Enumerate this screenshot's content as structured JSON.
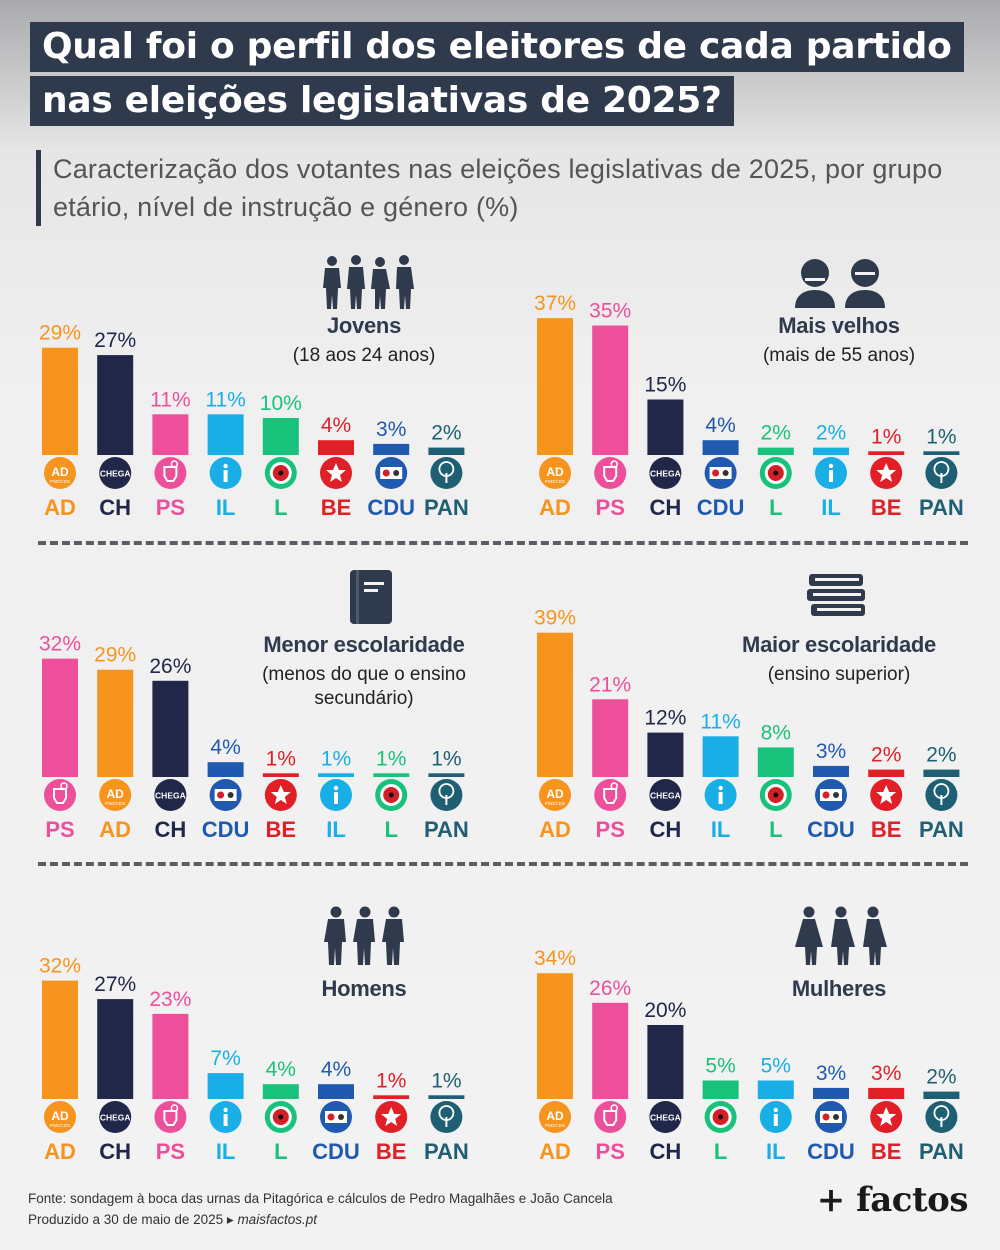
{
  "title_lines": [
    "Qual foi o perfil dos eleitores de cada partido",
    "nas eleições legislativas de 2025?"
  ],
  "subtitle": "Caracterização dos votantes nas eleições legislativas de 2025, por grupo etário, nível de instrução e género (%)",
  "colors": {
    "AD": "#f7941d",
    "CH": "#202749",
    "PS": "#ee4f9b",
    "IL": "#1aaee6",
    "L": "#19c27a",
    "BE": "#e01f27",
    "CDU": "#1f5ab0",
    "PAN": "#1f5f73"
  },
  "chart_data": [
    {
      "type": "bar",
      "title": "Jovens",
      "subtitle": "(18 aos 24 anos)",
      "icon": "young-people-icon",
      "categories": [
        "AD",
        "CH",
        "PS",
        "IL",
        "L",
        "BE",
        "CDU",
        "PAN"
      ],
      "values": [
        29,
        27,
        11,
        11,
        10,
        4,
        3,
        2
      ],
      "labels": [
        "29%",
        "27%",
        "11%",
        "11%",
        "10%",
        "4%",
        "3%",
        "2%"
      ]
    },
    {
      "type": "bar",
      "title": "Mais velhos",
      "subtitle": "(mais de 55 anos)",
      "icon": "elderly-people-icon",
      "categories": [
        "AD",
        "PS",
        "CH",
        "CDU",
        "L",
        "IL",
        "BE",
        "PAN"
      ],
      "values": [
        37,
        35,
        15,
        4,
        2,
        2,
        1,
        1
      ],
      "labels": [
        "37%",
        "35%",
        "15%",
        "4%",
        "2%",
        "2%",
        "1%",
        "1%"
      ]
    },
    {
      "type": "bar",
      "title": "Menor escolaridade",
      "subtitle": "(menos do que o ensino secundário)",
      "icon": "book-icon",
      "categories": [
        "PS",
        "AD",
        "CH",
        "CDU",
        "BE",
        "IL",
        "L",
        "PAN"
      ],
      "values": [
        32,
        29,
        26,
        4,
        1,
        1,
        1,
        1
      ],
      "labels": [
        "32%",
        "29%",
        "26%",
        "4%",
        "1%",
        "1%",
        "1%",
        "1%"
      ]
    },
    {
      "type": "bar",
      "title": "Maior escolaridade",
      "subtitle": "(ensino superior)",
      "icon": "books-stack-icon",
      "categories": [
        "AD",
        "PS",
        "CH",
        "IL",
        "L",
        "CDU",
        "BE",
        "PAN"
      ],
      "values": [
        39,
        21,
        12,
        11,
        8,
        3,
        2,
        2
      ],
      "labels": [
        "39%",
        "21%",
        "12%",
        "11%",
        "8%",
        "3%",
        "2%",
        "2%"
      ]
    },
    {
      "type": "bar",
      "title": "Homens",
      "subtitle": "",
      "icon": "men-icon",
      "categories": [
        "AD",
        "CH",
        "PS",
        "IL",
        "L",
        "CDU",
        "BE",
        "PAN"
      ],
      "values": [
        32,
        27,
        23,
        7,
        4,
        4,
        1,
        1
      ],
      "labels": [
        "32%",
        "27%",
        "23%",
        "7%",
        "4%",
        "4%",
        "1%",
        "1%"
      ]
    },
    {
      "type": "bar",
      "title": "Mulheres",
      "subtitle": "",
      "icon": "women-icon",
      "categories": [
        "AD",
        "PS",
        "CH",
        "L",
        "IL",
        "CDU",
        "BE",
        "PAN"
      ],
      "values": [
        34,
        26,
        20,
        5,
        5,
        3,
        3,
        2
      ],
      "labels": [
        "34%",
        "26%",
        "20%",
        "5%",
        "5%",
        "3%",
        "3%",
        "2%"
      ]
    }
  ],
  "logo_texts": {
    "AD": "AD",
    "AD_sub": "PSD/CDS",
    "CH": "CHEGA"
  },
  "footer": {
    "source": "Fonte: sondagem à boca das urnas da Pitagórica e cálculos de Pedro Magalhães e João Cancela",
    "produced": "Produzido a 30 de maio de 2025",
    "site": "maisfactos.pt"
  },
  "brand": "+ factos"
}
